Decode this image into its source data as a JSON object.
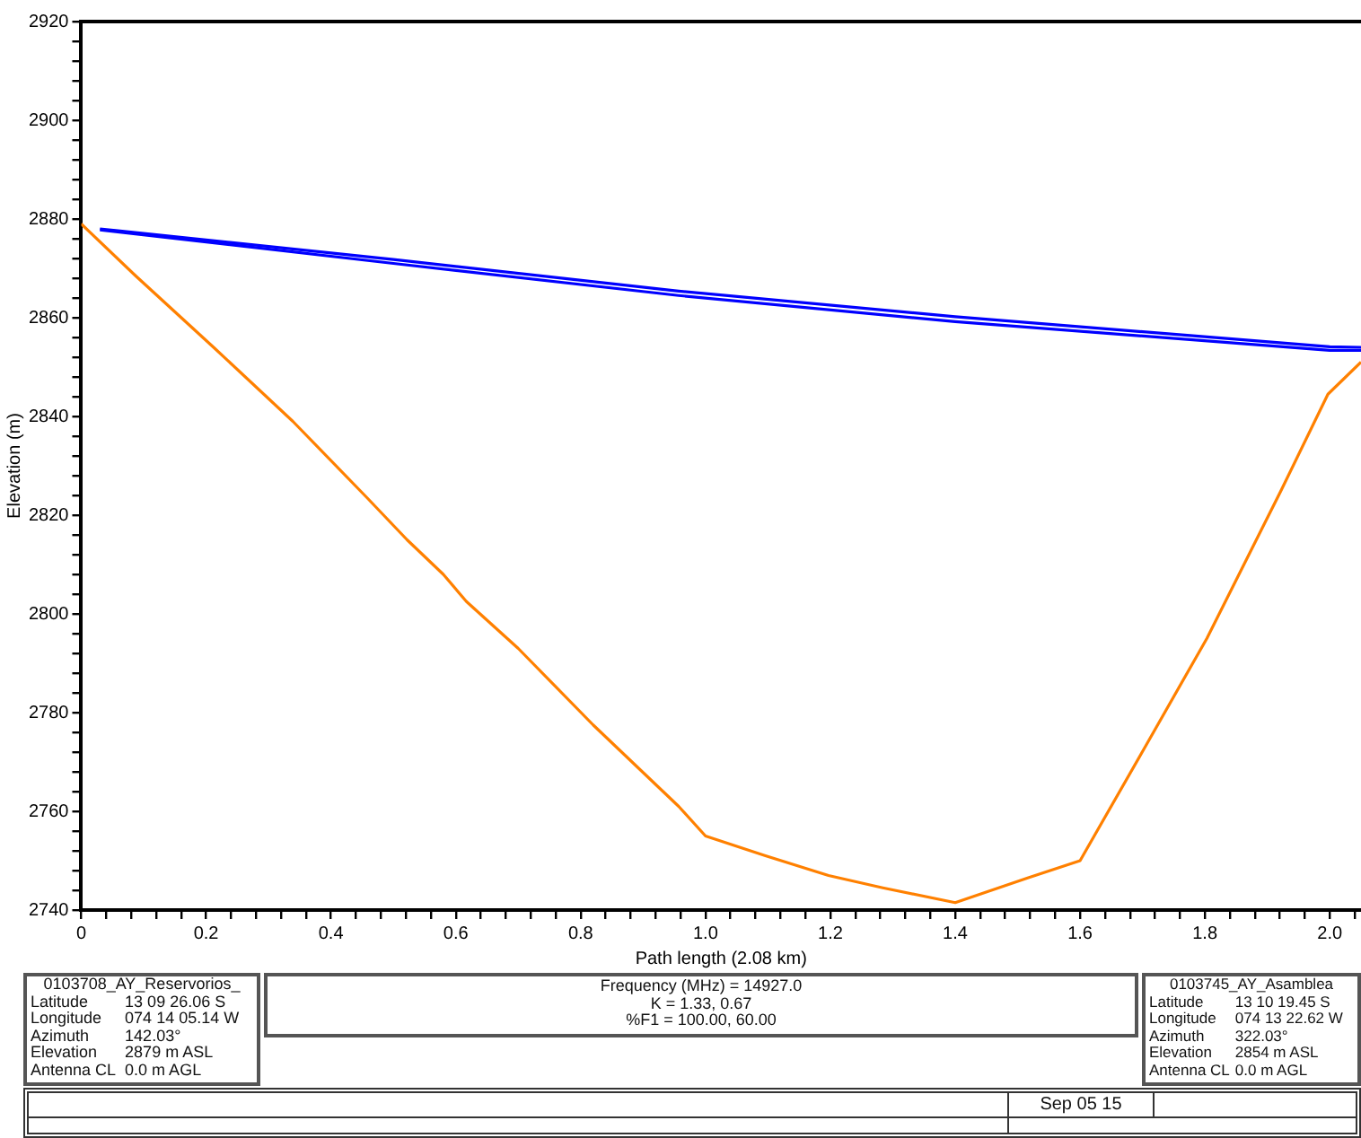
{
  "chart_data": {
    "type": "line",
    "xlabel": "Path length (2.08 km)",
    "ylabel": "Elevation (m)",
    "xlim": [
      0,
      2.05
    ],
    "ylim": [
      2740,
      2920
    ],
    "xticks": [
      0,
      {
        "value": 0.04,
        "label": null
      },
      {
        "value": 0.08,
        "label": null
      },
      {
        "value": 0.12,
        "label": null
      },
      {
        "value": 0.16,
        "label": null
      },
      0.2,
      {
        "value": 0.24,
        "label": null
      },
      {
        "value": 0.28,
        "label": null
      },
      {
        "value": 0.32,
        "label": null
      },
      {
        "value": 0.36,
        "label": null
      },
      0.4,
      {
        "value": 0.44,
        "label": null
      },
      {
        "value": 0.48,
        "label": null
      },
      {
        "value": 0.52,
        "label": null
      },
      {
        "value": 0.56,
        "label": null
      },
      0.6,
      {
        "value": 0.64,
        "label": null
      },
      {
        "value": 0.68,
        "label": null
      },
      {
        "value": 0.72,
        "label": null
      },
      {
        "value": 0.76,
        "label": null
      },
      0.8,
      {
        "value": 0.84,
        "label": null
      },
      {
        "value": 0.88,
        "label": null
      },
      {
        "value": 0.92,
        "label": null
      },
      {
        "value": 0.96,
        "label": null
      },
      {
        "value": 1,
        "label": "1.0"
      },
      {
        "value": 1.04,
        "label": null
      },
      {
        "value": 1.08,
        "label": null
      },
      {
        "value": 1.12,
        "label": null
      },
      {
        "value": 1.16,
        "label": null
      },
      1.2,
      {
        "value": 1.24,
        "label": null
      },
      {
        "value": 1.28,
        "label": null
      },
      {
        "value": 1.32,
        "label": null
      },
      {
        "value": 1.36,
        "label": null
      },
      1.4,
      {
        "value": 1.44,
        "label": null
      },
      {
        "value": 1.48,
        "label": null
      },
      {
        "value": 1.52,
        "label": null
      },
      {
        "value": 1.56,
        "label": null
      },
      1.6,
      {
        "value": 1.64,
        "label": null
      },
      {
        "value": 1.68,
        "label": null
      },
      {
        "value": 1.72,
        "label": null
      },
      {
        "value": 1.76,
        "label": null
      },
      1.8,
      {
        "value": 1.84,
        "label": null
      },
      {
        "value": 1.88,
        "label": null
      },
      {
        "value": 1.92,
        "label": null
      },
      {
        "value": 1.96,
        "label": null
      },
      {
        "value": 2,
        "label": "2.0"
      },
      {
        "value": 2.04,
        "label": null
      }
    ],
    "yticks": [
      2740,
      {
        "value": 2744,
        "label": null
      },
      {
        "value": 2748,
        "label": null
      },
      {
        "value": 2752,
        "label": null
      },
      {
        "value": 2756,
        "label": null
      },
      2760,
      {
        "value": 2764,
        "label": null
      },
      {
        "value": 2768,
        "label": null
      },
      {
        "value": 2772,
        "label": null
      },
      {
        "value": 2776,
        "label": null
      },
      2780,
      {
        "value": 2784,
        "label": null
      },
      {
        "value": 2788,
        "label": null
      },
      {
        "value": 2792,
        "label": null
      },
      {
        "value": 2796,
        "label": null
      },
      2800,
      {
        "value": 2804,
        "label": null
      },
      {
        "value": 2808,
        "label": null
      },
      {
        "value": 2812,
        "label": null
      },
      {
        "value": 2816,
        "label": null
      },
      2820,
      {
        "value": 2824,
        "label": null
      },
      {
        "value": 2828,
        "label": null
      },
      {
        "value": 2832,
        "label": null
      },
      {
        "value": 2836,
        "label": null
      },
      2840,
      {
        "value": 2844,
        "label": null
      },
      {
        "value": 2848,
        "label": null
      },
      {
        "value": 2852,
        "label": null
      },
      {
        "value": 2856,
        "label": null
      },
      2860,
      {
        "value": 2864,
        "label": null
      },
      {
        "value": 2868,
        "label": null
      },
      {
        "value": 2872,
        "label": null
      },
      {
        "value": 2876,
        "label": null
      },
      2880,
      {
        "value": 2884,
        "label": null
      },
      {
        "value": 2888,
        "label": null
      },
      {
        "value": 2892,
        "label": null
      },
      {
        "value": 2896,
        "label": null
      },
      2900,
      {
        "value": 2904,
        "label": null
      },
      {
        "value": 2908,
        "label": null
      },
      {
        "value": 2912,
        "label": null
      },
      {
        "value": 2916,
        "label": null
      },
      2920
    ],
    "grid": false,
    "legend": false,
    "marker": "none",
    "line_style": "solid",
    "series": [
      {
        "color": "#ff8000",
        "x": [
          0,
          0.087,
          0.212,
          0.339,
          0.458,
          0.522,
          0.58,
          0.617,
          0.7,
          0.82,
          0.957,
          1.0,
          1.096,
          1.197,
          1.284,
          1.4,
          1.516,
          1.6,
          1.704,
          1.803,
          1.922,
          1.997,
          2.05
        ],
        "values": [
          2879,
          2868.5,
          2854,
          2839,
          2823.5,
          2815,
          2808,
          2802.5,
          2793,
          2777.5,
          2761,
          2755,
          2751,
          2747,
          2744.5,
          2741.5,
          2746.5,
          2750,
          2773,
          2795,
          2825,
          2844.5,
          2851
        ]
      },
      {
        "color": "#0000ff",
        "x": [
          0.03,
          0.5,
          0.957,
          1.4,
          2.0,
          2.05
        ],
        "values": [
          2878,
          2871.8,
          2865.4,
          2860.2,
          2854.1,
          2854
        ]
      },
      {
        "color": "#0000ff",
        "x": [
          0.03,
          0.5,
          0.957,
          1.4,
          2.0,
          2.05
        ],
        "values": [
          2877.8,
          2871,
          2864.5,
          2859.2,
          2853.4,
          2853.4
        ]
      }
    ],
    "annotations": [
      "0103708_AY_Reservorios_\nLatitude\t13 09 26.06 S\nLongitude\t074 14 05.14 W\nAzimuth\t142.03°\nElevation\t2879 m ASL\nAntenna CL\t0.0 m AGL",
      "Frequency (MHz) = 14927.0\nK = 1.33, 0.67\n%F1 = 100.00, 60.00",
      "0103745_AY_Asamblea\nLatitude\t13 10 19.45 S\nLongitude\t074 13 22.62 W\nAzimuth\t322.03°\nElevation\t2854 m ASL\nAntenna CL\t0.0 m AGL",
      "Sep 05 15"
    ]
  }
}
